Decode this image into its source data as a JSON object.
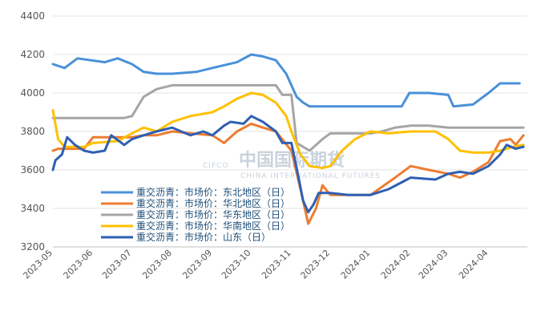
{
  "chart_data": {
    "type": "line",
    "title": "",
    "xlabel": "",
    "ylabel": "",
    "ylim": [
      3200,
      4400
    ],
    "yticks": [
      3200,
      3400,
      3600,
      3800,
      4000,
      4200,
      4400
    ],
    "xlim": [
      "2023-05",
      "2024-05"
    ],
    "xticks": [
      "2023-05",
      "2023-06",
      "2023-07",
      "2023-08",
      "2023-09",
      "2023-10",
      "2023-11",
      "2023-12",
      "2024-01",
      "2024-02",
      "2024-03",
      "2024-04"
    ],
    "grid": "horizontal",
    "legend_position": "center-left",
    "series": [
      {
        "name": "重交沥青：市场价：东北地区（日）",
        "color": "#4a90d9",
        "points": [
          [
            "2023-05",
            4150
          ],
          [
            "2023-05-10",
            4130
          ],
          [
            "2023-05-20",
            4180
          ],
          [
            "2023-06-10",
            4160
          ],
          [
            "2023-06-20",
            4180
          ],
          [
            "2023-07",
            4150
          ],
          [
            "2023-07-10",
            4110
          ],
          [
            "2023-07-20",
            4100
          ],
          [
            "2023-08",
            4100
          ],
          [
            "2023-08-20",
            4110
          ],
          [
            "2023-09",
            4130
          ],
          [
            "2023-09-20",
            4160
          ],
          [
            "2023-10",
            4200
          ],
          [
            "2023-10-10",
            4190
          ],
          [
            "2023-10-20",
            4170
          ],
          [
            "2023-10-28",
            4100
          ],
          [
            "2023-11-05",
            3980
          ],
          [
            "2023-11-10",
            3950
          ],
          [
            "2023-11-15",
            3930
          ],
          [
            "2023-12",
            3930
          ],
          [
            "2024-01",
            3930
          ],
          [
            "2024-01-25",
            3930
          ],
          [
            "2024-01-31",
            4000
          ],
          [
            "2024-02-15",
            4000
          ],
          [
            "2024-03",
            3990
          ],
          [
            "2024-03-05",
            3930
          ],
          [
            "2024-03-20",
            3940
          ],
          [
            "2024-04",
            4000
          ],
          [
            "2024-04-10",
            4050
          ],
          [
            "2024-04-25",
            4050
          ]
        ]
      },
      {
        "name": "重交沥青：市场价：华北地区（日）",
        "color": "#ed7d31",
        "points": [
          [
            "2023-05",
            3700
          ],
          [
            "2023-05-05",
            3710
          ],
          [
            "2023-05-25",
            3710
          ],
          [
            "2023-06",
            3770
          ],
          [
            "2023-06-15",
            3770
          ],
          [
            "2023-07",
            3770
          ],
          [
            "2023-07-10",
            3780
          ],
          [
            "2023-07-20",
            3780
          ],
          [
            "2023-08",
            3800
          ],
          [
            "2023-08-15",
            3790
          ],
          [
            "2023-09",
            3780
          ],
          [
            "2023-09-10",
            3740
          ],
          [
            "2023-09-20",
            3800
          ],
          [
            "2023-10",
            3840
          ],
          [
            "2023-10-10",
            3820
          ],
          [
            "2023-10-20",
            3800
          ],
          [
            "2023-11",
            3700
          ],
          [
            "2023-11-08",
            3500
          ],
          [
            "2023-11-14",
            3320
          ],
          [
            "2023-11-20",
            3400
          ],
          [
            "2023-11-25",
            3520
          ],
          [
            "2023-12",
            3470
          ],
          [
            "2023-12-15",
            3470
          ],
          [
            "2024-01",
            3470
          ],
          [
            "2024-01-20",
            3560
          ],
          [
            "2024-02",
            3620
          ],
          [
            "2024-02-15",
            3600
          ],
          [
            "2024-03",
            3580
          ],
          [
            "2024-03-10",
            3560
          ],
          [
            "2024-03-20",
            3590
          ],
          [
            "2024-04",
            3640
          ],
          [
            "2024-04-10",
            3750
          ],
          [
            "2024-04-18",
            3760
          ],
          [
            "2024-04-22",
            3730
          ],
          [
            "2024-04-28",
            3780
          ]
        ]
      },
      {
        "name": "重交沥青：市场价：华东地区（日）",
        "color": "#a5a5a5",
        "points": [
          [
            "2023-05",
            3870
          ],
          [
            "2023-06",
            3870
          ],
          [
            "2023-06-25",
            3870
          ],
          [
            "2023-07",
            3880
          ],
          [
            "2023-07-10",
            3980
          ],
          [
            "2023-07-20",
            4020
          ],
          [
            "2023-08",
            4040
          ],
          [
            "2023-09",
            4040
          ],
          [
            "2023-10",
            4040
          ],
          [
            "2023-10-20",
            4040
          ],
          [
            "2023-10-25",
            3990
          ],
          [
            "2023-11",
            3990
          ],
          [
            "2023-11-05",
            3740
          ],
          [
            "2023-11-10",
            3720
          ],
          [
            "2023-11-15",
            3700
          ],
          [
            "2023-11-25",
            3760
          ],
          [
            "2023-12",
            3790
          ],
          [
            "2024-01",
            3790
          ],
          [
            "2024-01-10",
            3800
          ],
          [
            "2024-01-20",
            3820
          ],
          [
            "2024-02",
            3830
          ],
          [
            "2024-02-15",
            3830
          ],
          [
            "2024-03",
            3820
          ],
          [
            "2024-04",
            3820
          ],
          [
            "2024-04-28",
            3820
          ]
        ]
      },
      {
        "name": "重交沥青：市场价：华南地区（日）",
        "color": "#ffc000",
        "points": [
          [
            "2023-05",
            3910
          ],
          [
            "2023-05-05",
            3760
          ],
          [
            "2023-05-10",
            3720
          ],
          [
            "2023-05-25",
            3720
          ],
          [
            "2023-06",
            3740
          ],
          [
            "2023-06-20",
            3750
          ],
          [
            "2023-07",
            3790
          ],
          [
            "2023-07-10",
            3820
          ],
          [
            "2023-07-20",
            3800
          ],
          [
            "2023-08",
            3850
          ],
          [
            "2023-08-15",
            3880
          ],
          [
            "2023-09",
            3900
          ],
          [
            "2023-09-10",
            3930
          ],
          [
            "2023-09-20",
            3970
          ],
          [
            "2023-10",
            4000
          ],
          [
            "2023-10-10",
            3990
          ],
          [
            "2023-10-20",
            3950
          ],
          [
            "2023-10-28",
            3880
          ],
          [
            "2023-11",
            3800
          ],
          [
            "2023-11-08",
            3680
          ],
          [
            "2023-11-15",
            3620
          ],
          [
            "2023-11-25",
            3610
          ],
          [
            "2023-12",
            3620
          ],
          [
            "2023-12-10",
            3700
          ],
          [
            "2023-12-20",
            3760
          ],
          [
            "2024-01",
            3800
          ],
          [
            "2024-01-15",
            3790
          ],
          [
            "2024-02",
            3800
          ],
          [
            "2024-02-20",
            3800
          ],
          [
            "2024-03",
            3760
          ],
          [
            "2024-03-10",
            3700
          ],
          [
            "2024-03-20",
            3690
          ],
          [
            "2024-04",
            3690
          ],
          [
            "2024-04-10",
            3700
          ],
          [
            "2024-04-20",
            3720
          ],
          [
            "2024-04-28",
            3730
          ]
        ]
      },
      {
        "name": "重交沥青：市场价：山东（日）",
        "color": "#2f5fb3",
        "points": [
          [
            "2023-05",
            3600
          ],
          [
            "2023-05-03",
            3650
          ],
          [
            "2023-05-08",
            3680
          ],
          [
            "2023-05-12",
            3770
          ],
          [
            "2023-05-18",
            3730
          ],
          [
            "2023-05-25",
            3700
          ],
          [
            "2023-06",
            3690
          ],
          [
            "2023-06-10",
            3700
          ],
          [
            "2023-06-15",
            3780
          ],
          [
            "2023-06-25",
            3730
          ],
          [
            "2023-07",
            3760
          ],
          [
            "2023-07-10",
            3780
          ],
          [
            "2023-07-20",
            3800
          ],
          [
            "2023-08",
            3820
          ],
          [
            "2023-08-15",
            3780
          ],
          [
            "2023-08-25",
            3800
          ],
          [
            "2023-09",
            3780
          ],
          [
            "2023-09-10",
            3830
          ],
          [
            "2023-09-15",
            3850
          ],
          [
            "2023-09-25",
            3840
          ],
          [
            "2023-10",
            3880
          ],
          [
            "2023-10-10",
            3850
          ],
          [
            "2023-10-20",
            3800
          ],
          [
            "2023-10-25",
            3740
          ],
          [
            "2023-11",
            3740
          ],
          [
            "2023-11-05",
            3610
          ],
          [
            "2023-11-10",
            3440
          ],
          [
            "2023-11-14",
            3380
          ],
          [
            "2023-11-18",
            3420
          ],
          [
            "2023-11-22",
            3480
          ],
          [
            "2023-12",
            3480
          ],
          [
            "2023-12-15",
            3470
          ],
          [
            "2024-01",
            3470
          ],
          [
            "2024-01-15",
            3500
          ],
          [
            "2024-02",
            3560
          ],
          [
            "2024-02-20",
            3550
          ],
          [
            "2024-03",
            3580
          ],
          [
            "2024-03-10",
            3590
          ],
          [
            "2024-03-20",
            3580
          ],
          [
            "2024-04",
            3620
          ],
          [
            "2024-04-10",
            3680
          ],
          [
            "2024-04-15",
            3730
          ],
          [
            "2024-04-22",
            3710
          ],
          [
            "2024-04-28",
            3720
          ]
        ]
      }
    ],
    "watermark": {
      "cn": "中国国际期货",
      "en": "CIFCO",
      "en_sub": "CHINA INTERNATIONAL FUTURES"
    }
  }
}
